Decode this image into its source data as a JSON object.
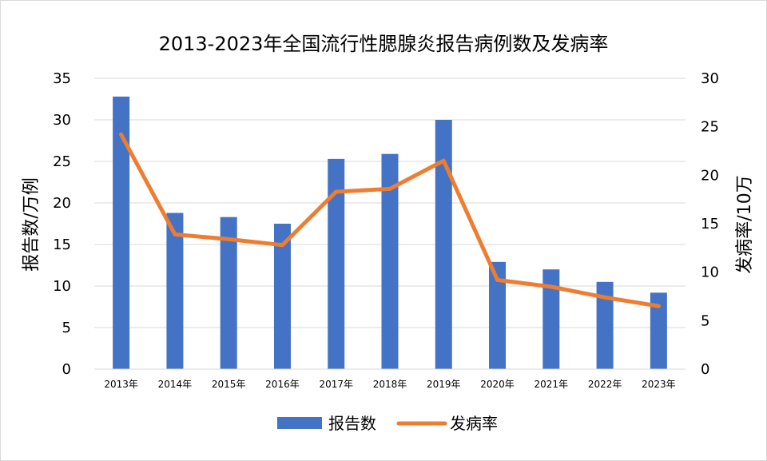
{
  "chart_data": {
    "type": "bar",
    "title": "2013-2023年全国流行性腮腺炎报告病例数及发病率",
    "categories": [
      "2013年",
      "2014年",
      "2015年",
      "2016年",
      "2017年",
      "2018年",
      "2019年",
      "2020年",
      "2021年",
      "2022年",
      "2023年"
    ],
    "series": [
      {
        "name": "报告数",
        "type": "bar",
        "axis": "left",
        "color": "#4472C4",
        "values": [
          32.8,
          18.8,
          18.3,
          17.5,
          25.3,
          25.9,
          30.0,
          12.9,
          12.0,
          10.5,
          9.2
        ]
      },
      {
        "name": "发病率",
        "type": "line",
        "axis": "right",
        "color": "#ED7D31",
        "values": [
          24.2,
          13.9,
          13.4,
          12.8,
          18.3,
          18.6,
          21.5,
          9.2,
          8.5,
          7.4,
          6.5
        ]
      }
    ],
    "y_left": {
      "label": "报告数/万例",
      "min": 0,
      "max": 35,
      "ticks": [
        0,
        5,
        10,
        15,
        20,
        25,
        30,
        35
      ]
    },
    "y_right": {
      "label": "发病率/10万",
      "min": 0,
      "max": 30,
      "ticks": [
        0,
        5,
        10,
        15,
        20,
        25,
        30
      ]
    },
    "grid": true,
    "legend": "bottom-center"
  }
}
